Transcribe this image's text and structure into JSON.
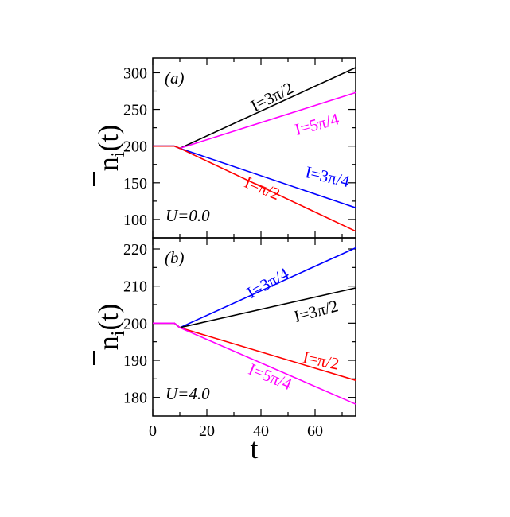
{
  "chart_data": [
    {
      "type": "line",
      "panel_label": "(a)",
      "param_label": "U=0.0",
      "ylabel": {
        "main": "n",
        "sub": "i",
        "suffix": "(t)"
      },
      "xlim": [
        0,
        75
      ],
      "ylim": [
        75,
        320
      ],
      "yticks": [
        100,
        150,
        200,
        250,
        300
      ],
      "grid": false,
      "series": [
        {
          "name": "I=3π/2",
          "color": "#000000",
          "x": [
            0,
            8,
            10,
            75
          ],
          "y": [
            200,
            200,
            197,
            307
          ]
        },
        {
          "name": "I=5π/4",
          "color": "#ff00ff",
          "x": [
            0,
            8,
            10,
            75
          ],
          "y": [
            200,
            200,
            197,
            273
          ]
        },
        {
          "name": "I=3π/4",
          "color": "#0000ff",
          "x": [
            0,
            8,
            10,
            75
          ],
          "y": [
            200,
            200,
            197,
            116
          ]
        },
        {
          "name": "I=π/2",
          "color": "#ff0000",
          "x": [
            0,
            8,
            10,
            75
          ],
          "y": [
            200,
            200,
            197,
            84
          ]
        }
      ]
    },
    {
      "type": "line",
      "panel_label": "(b)",
      "param_label": "U=4.0",
      "ylabel": {
        "main": "n",
        "sub": "i",
        "suffix": "(t)"
      },
      "xlabel": "t",
      "xlim": [
        0,
        75
      ],
      "xticks": [
        0,
        20,
        40,
        60
      ],
      "ylim": [
        175,
        223
      ],
      "yticks": [
        180,
        190,
        200,
        210,
        220
      ],
      "grid": false,
      "series": [
        {
          "name": "I=3π/4",
          "color": "#0000ff",
          "x": [
            0,
            8,
            10,
            75
          ],
          "y": [
            200,
            200,
            198.8,
            220.3
          ]
        },
        {
          "name": "I=3π/2",
          "color": "#000000",
          "x": [
            0,
            8,
            10,
            75
          ],
          "y": [
            200,
            200,
            198.8,
            209.5
          ]
        },
        {
          "name": "I=π/2",
          "color": "#ff0000",
          "x": [
            0,
            8,
            10,
            75
          ],
          "y": [
            200,
            200,
            198.8,
            184.6
          ]
        },
        {
          "name": "I=5π/4",
          "color": "#ff00ff",
          "x": [
            0,
            8,
            10,
            75
          ],
          "y": [
            200,
            200,
            198.8,
            178.2
          ]
        }
      ]
    }
  ]
}
